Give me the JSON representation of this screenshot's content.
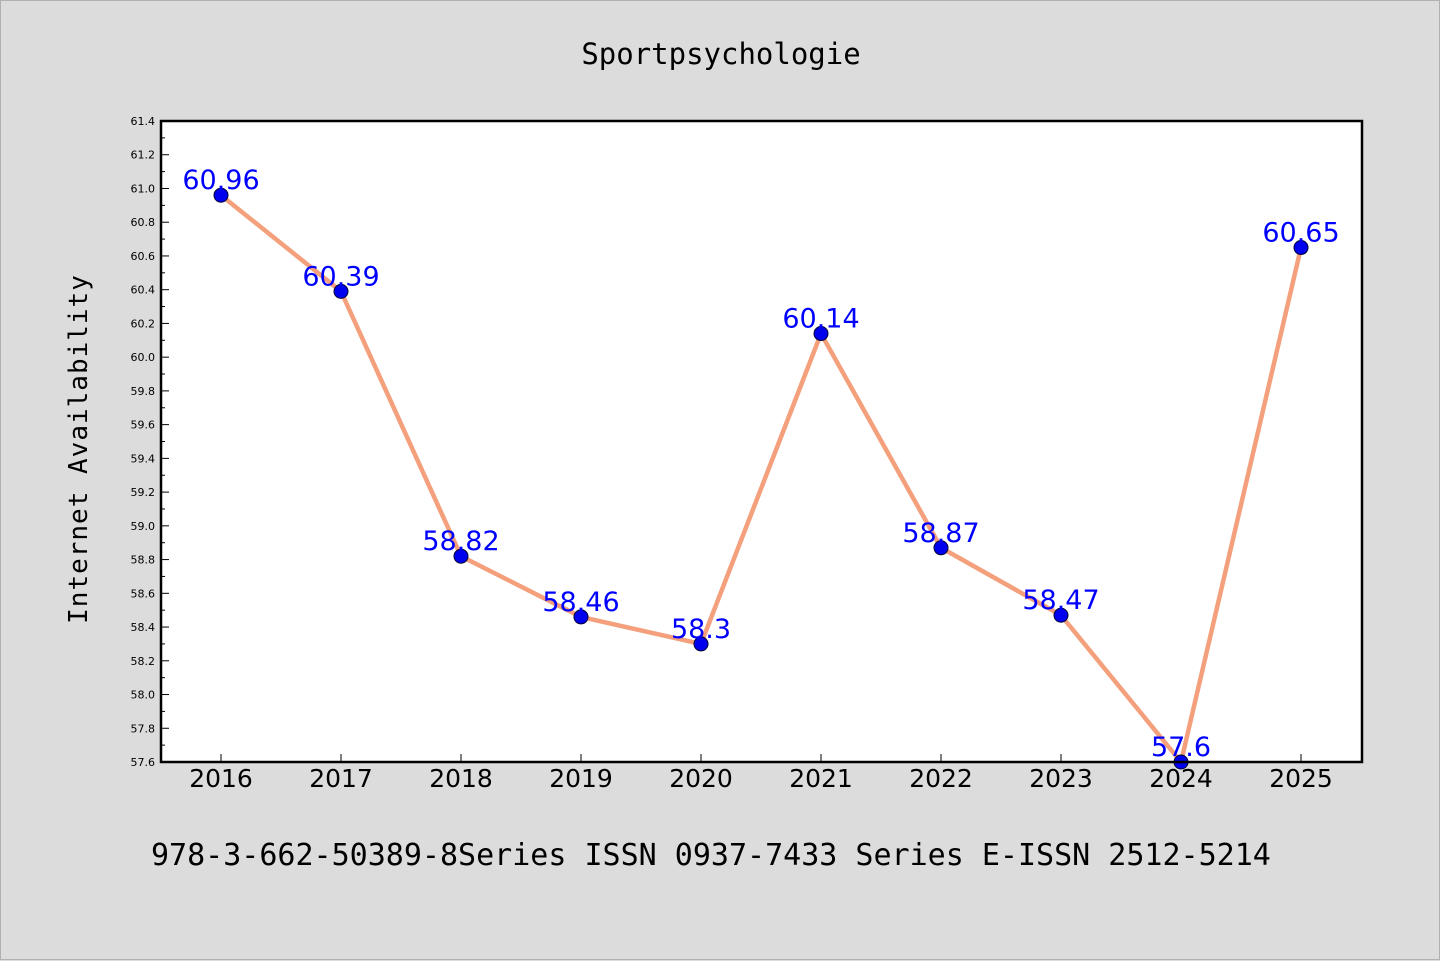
{
  "footer": "978-3-662-50389-8Series ISSN 0937-7433 Series E-ISSN 2512-5214",
  "chart_data": {
    "type": "line",
    "title": "Sportpsychologie",
    "xlabel": "",
    "ylabel": "Internet Availability",
    "categories": [
      "2016",
      "2017",
      "2018",
      "2019",
      "2020",
      "2021",
      "2022",
      "2023",
      "2024",
      "2025"
    ],
    "series": [
      {
        "values": [
          60.96,
          60.39,
          58.82,
          58.46,
          58.3,
          60.14,
          58.87,
          58.47,
          57.6,
          60.65
        ],
        "data_labels": [
          "60.96",
          "60.39",
          "58.82",
          "58.46",
          "58.3",
          "60.14",
          "58.87",
          "58.47",
          "57.6",
          "60.65"
        ],
        "line_color": "#f4a07c",
        "marker_color": "#0000ee",
        "label_color": "#0000ff"
      }
    ],
    "ylim": [
      57.6,
      61.4
    ],
    "yticks": [
      "57.6",
      "57.8",
      "58.0",
      "58.2",
      "58.4",
      "58.6",
      "58.8",
      "59.0",
      "59.2",
      "59.4",
      "59.6",
      "59.8",
      "60.0",
      "60.2",
      "60.4",
      "60.6",
      "60.8",
      "61.0",
      "61.2",
      "61.4"
    ],
    "grid": false,
    "legend": "none",
    "background_color": "#dcdcdc",
    "plot_background_color": "#ffffff"
  }
}
